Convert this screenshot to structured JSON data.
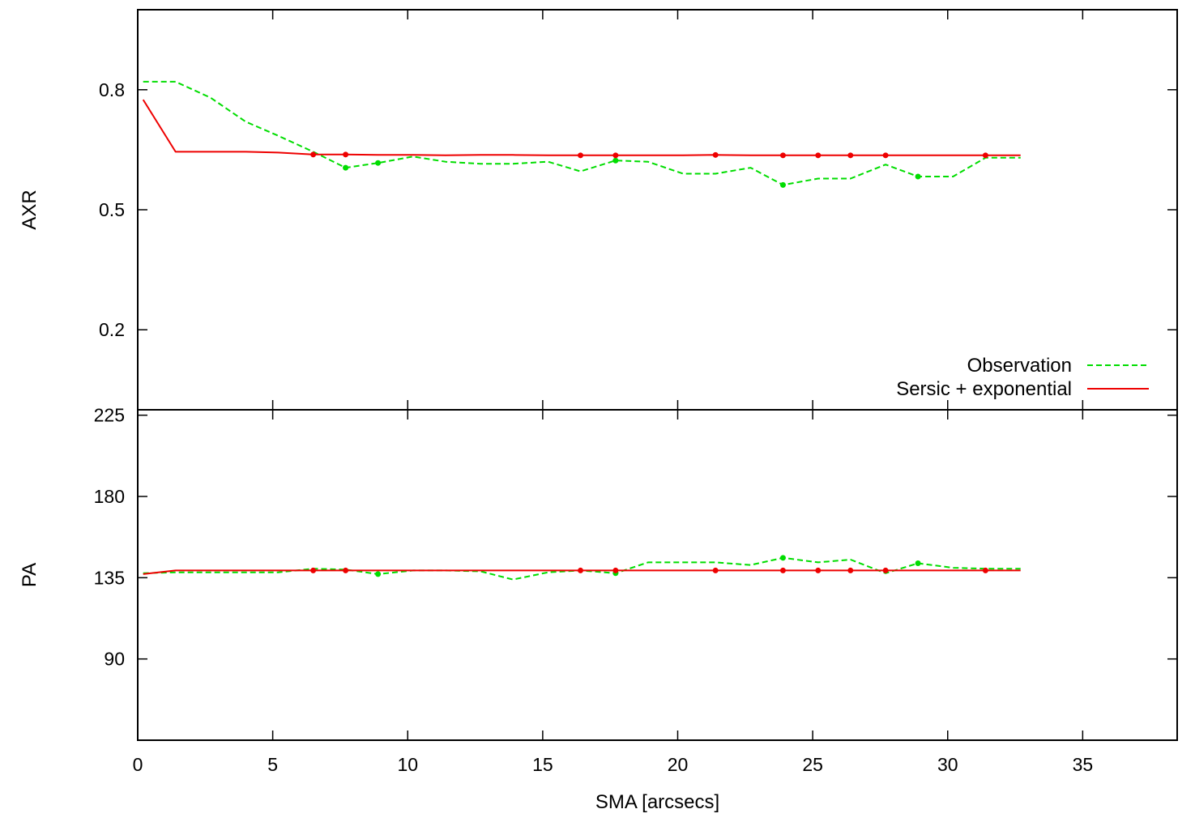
{
  "chart_data": [
    {
      "type": "line",
      "panel": "top",
      "ylabel": "AXR",
      "xlim": [
        0,
        38.5
      ],
      "ylim": [
        0.0,
        1.0
      ],
      "yticks": [
        0.2,
        0.5,
        0.8
      ],
      "yticklabels": [
        "0.2",
        "0.5",
        "0.8"
      ],
      "legend_position": "bottom-right",
      "series": [
        {
          "name": "Observation",
          "color": "#00dd00",
          "style": "dashed",
          "x": [
            0.2,
            1.4,
            2.7,
            4.0,
            5.2,
            6.5,
            7.7,
            8.9,
            10.2,
            11.4,
            12.7,
            13.9,
            15.2,
            16.4,
            17.7,
            18.9,
            20.2,
            21.4,
            22.7,
            23.9,
            25.2,
            26.4,
            27.7,
            28.9,
            30.2,
            31.4,
            32.7
          ],
          "y": [
            0.82,
            0.82,
            0.78,
            0.72,
            0.685,
            0.645,
            0.605,
            0.617,
            0.633,
            0.62,
            0.615,
            0.615,
            0.62,
            0.596,
            0.623,
            0.62,
            0.59,
            0.59,
            0.605,
            0.562,
            0.578,
            0.578,
            0.613,
            0.583,
            0.583,
            0.63,
            0.63
          ],
          "markers_x": [
            7.7,
            8.9,
            17.7,
            23.9,
            28.9
          ],
          "markers_y": [
            0.605,
            0.617,
            0.623,
            0.562,
            0.583
          ]
        },
        {
          "name": "Sersic + exponential",
          "color": "#ee0000",
          "style": "solid",
          "x": [
            0.2,
            1.4,
            2.7,
            4.0,
            5.2,
            6.5,
            7.7,
            8.9,
            10.2,
            11.4,
            12.7,
            13.9,
            15.2,
            16.4,
            17.7,
            18.9,
            20.2,
            21.4,
            22.7,
            23.9,
            25.2,
            26.4,
            27.7,
            28.9,
            30.2,
            31.4,
            32.7
          ],
          "y": [
            0.775,
            0.645,
            0.645,
            0.645,
            0.643,
            0.638,
            0.638,
            0.637,
            0.637,
            0.636,
            0.637,
            0.637,
            0.636,
            0.636,
            0.636,
            0.636,
            0.636,
            0.637,
            0.636,
            0.636,
            0.636,
            0.636,
            0.636,
            0.636,
            0.636,
            0.636,
            0.636
          ],
          "markers_x": [
            6.5,
            7.7,
            16.4,
            17.7,
            21.4,
            23.9,
            25.2,
            26.4,
            27.7,
            31.4
          ],
          "markers_y": [
            0.638,
            0.638,
            0.636,
            0.636,
            0.637,
            0.636,
            0.636,
            0.636,
            0.636,
            0.636
          ]
        }
      ],
      "legend": [
        "Observation",
        "Sersic + exponential"
      ]
    },
    {
      "type": "line",
      "panel": "bottom",
      "ylabel": "PA",
      "xlabel": "SMA [arcsecs]",
      "xlim": [
        0,
        38.5
      ],
      "ylim": [
        45,
        228
      ],
      "xticks": [
        0,
        5,
        10,
        15,
        20,
        25,
        30,
        35
      ],
      "xticklabels": [
        "0",
        "5",
        "10",
        "15",
        "20",
        "25",
        "30",
        "35"
      ],
      "yticks": [
        90,
        135,
        180,
        225
      ],
      "yticklabels": [
        "90",
        "135",
        "180",
        "225"
      ],
      "series": [
        {
          "name": "Observation",
          "color": "#00dd00",
          "style": "dashed",
          "x": [
            0.2,
            1.4,
            2.7,
            4.0,
            5.2,
            6.5,
            7.7,
            8.9,
            10.2,
            11.4,
            12.7,
            13.9,
            15.2,
            16.4,
            17.7,
            18.9,
            20.2,
            21.4,
            22.7,
            23.9,
            25.2,
            26.4,
            27.7,
            28.9,
            30.2,
            31.4,
            32.7
          ],
          "y": [
            137.5,
            138.0,
            138.0,
            138.0,
            138.0,
            140.0,
            139.5,
            137.0,
            139.0,
            139.0,
            138.5,
            134.0,
            138.0,
            139.0,
            137.5,
            143.5,
            143.5,
            143.5,
            142.0,
            146.0,
            143.5,
            145.0,
            137.5,
            143.0,
            140.5,
            140.0,
            140.0
          ],
          "markers_x": [
            8.9,
            17.7,
            23.9,
            28.9
          ],
          "markers_y": [
            137.0,
            137.5,
            146.0,
            143.0
          ]
        },
        {
          "name": "Sersic + exponential",
          "color": "#ee0000",
          "style": "solid",
          "x": [
            0.2,
            1.4,
            2.7,
            4.0,
            5.2,
            6.5,
            7.7,
            8.9,
            10.2,
            11.4,
            12.7,
            13.9,
            15.2,
            16.4,
            17.7,
            18.9,
            20.2,
            21.4,
            22.7,
            23.9,
            25.2,
            26.4,
            27.7,
            28.9,
            30.2,
            31.4,
            32.7
          ],
          "y": [
            137.0,
            139.0,
            139.0,
            139.0,
            139.0,
            139.0,
            139.0,
            139.0,
            139.0,
            139.0,
            139.0,
            139.0,
            139.0,
            139.0,
            139.0,
            139.0,
            139.0,
            139.0,
            139.0,
            139.0,
            139.0,
            139.0,
            139.0,
            139.0,
            139.0,
            139.0,
            139.0
          ],
          "markers_x": [
            6.5,
            7.7,
            16.4,
            17.7,
            21.4,
            23.9,
            25.2,
            26.4,
            27.7,
            31.4
          ],
          "markers_y": [
            139.0,
            139.0,
            139.0,
            139.0,
            139.0,
            139.0,
            139.0,
            139.0,
            139.0,
            139.0
          ]
        }
      ]
    }
  ]
}
